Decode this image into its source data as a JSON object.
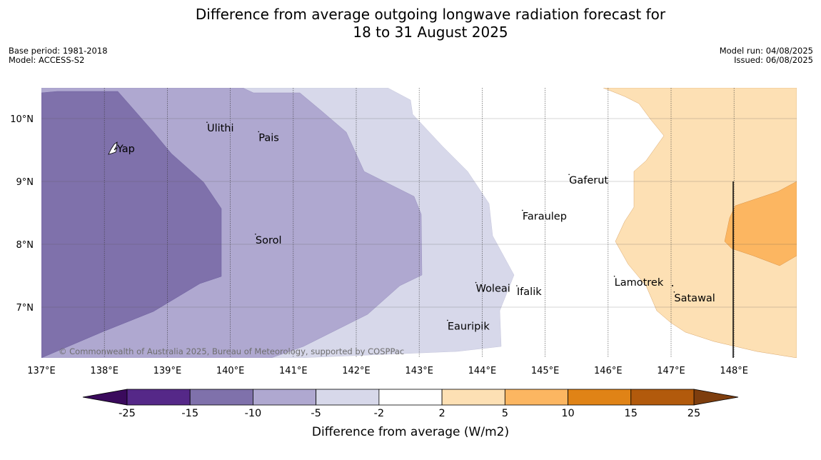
{
  "header": {
    "title_line1": "Difference from average outgoing longwave radiation forecast for",
    "title_line2": "18 to 31 August 2025",
    "base_period": "Base period: 1981-2018",
    "model": "Model: ACCESS-S2",
    "model_run": "Model run: 04/08/2025",
    "issued": "Issued: 06/08/2025"
  },
  "map": {
    "lon_range": [
      137,
      149
    ],
    "lat_range": [
      6.2,
      10.5
    ],
    "lon_ticks": [
      "137°E",
      "138°E",
      "139°E",
      "140°E",
      "141°E",
      "142°E",
      "143°E",
      "144°E",
      "145°E",
      "146°E",
      "147°E",
      "148°E"
    ],
    "lat_ticks": [
      "10°N",
      "9°N",
      "8°N",
      "7°N"
    ],
    "places": [
      {
        "name": "Yap",
        "lon": 138.2,
        "lat": 9.52
      },
      {
        "name": "Ulithi",
        "lon": 139.63,
        "lat": 9.85
      },
      {
        "name": "Pais",
        "lon": 140.45,
        "lat": 9.7
      },
      {
        "name": "Sorol",
        "lon": 140.4,
        "lat": 8.07
      },
      {
        "name": "Gaferut",
        "lon": 145.38,
        "lat": 9.02
      },
      {
        "name": "Faraulep",
        "lon": 144.64,
        "lat": 8.45
      },
      {
        "name": "Woleai",
        "lon": 143.9,
        "lat": 7.3
      },
      {
        "name": "Ifalik",
        "lon": 144.55,
        "lat": 7.25
      },
      {
        "name": "Lamotrek",
        "lon": 146.1,
        "lat": 7.4
      },
      {
        "name": "Satawal",
        "lon": 147.05,
        "lat": 7.15
      },
      {
        "name": "Eauripik",
        "lon": 143.45,
        "lat": 6.7
      }
    ],
    "copyright": "© Commonwealth of Australia 2025, Bureau of Meteorology, supported by COSPPac"
  },
  "colorbar": {
    "label": "Difference from average (W/m2)",
    "ticks": [
      "-25",
      "-15",
      "-10",
      "-5",
      "-2",
      "2",
      "5",
      "10",
      "15",
      "25"
    ],
    "colors": [
      "#552888",
      "#7f71ab",
      "#afa8d0",
      "#d7d8ea",
      "#ffffff",
      "#fde0b4",
      "#fcb661",
      "#e08316",
      "#b25a0c"
    ],
    "under_color": "#3a0a5c",
    "over_color": "#7e3e0e"
  }
}
